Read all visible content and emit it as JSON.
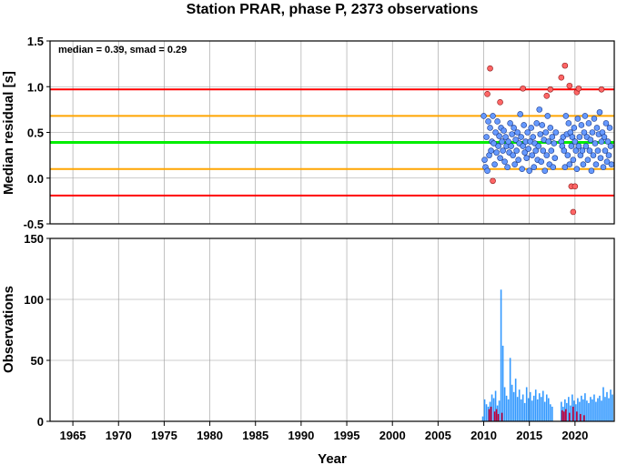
{
  "chart_data": [
    {
      "type": "scatter",
      "title": "Station PRAR, phase P, 2373 observations",
      "xlabel": "",
      "ylabel": "Median residual [s]",
      "annotation": "median = 0.39, smad = 0.29",
      "xlim": [
        1962.5,
        2024.3
      ],
      "ylim": [
        -0.5,
        1.5
      ],
      "yticks": [
        "1.5",
        "1.0",
        "0.5",
        "0.0",
        "-0.5"
      ],
      "grid": true,
      "reference_lines": [
        {
          "value": 0.97,
          "color": "#ff0000"
        },
        {
          "value": 0.68,
          "color": "#ffa500"
        },
        {
          "value": 0.39,
          "color": "#00ee00"
        },
        {
          "value": 0.1,
          "color": "#ffa500"
        },
        {
          "value": -0.19,
          "color": "#ff0000"
        }
      ],
      "point_colors": {
        "normal": "#6699ff",
        "outlier": "#ff6666"
      },
      "normal_points": [
        [
          2010.0,
          0.68
        ],
        [
          2010.1,
          0.2
        ],
        [
          2010.2,
          0.12
        ],
        [
          2010.3,
          0.45
        ],
        [
          2010.4,
          0.08
        ],
        [
          2010.5,
          0.62
        ],
        [
          2010.6,
          0.25
        ],
        [
          2010.7,
          0.55
        ],
        [
          2010.8,
          0.3
        ],
        [
          2010.9,
          0.4
        ],
        [
          2011.0,
          0.68
        ],
        [
          2011.1,
          0.38
        ],
        [
          2011.2,
          0.15
        ],
        [
          2011.3,
          0.5
        ],
        [
          2011.4,
          0.28
        ],
        [
          2011.5,
          0.62
        ],
        [
          2011.6,
          0.35
        ],
        [
          2011.7,
          0.46
        ],
        [
          2011.8,
          0.22
        ],
        [
          2011.9,
          0.55
        ],
        [
          2012.0,
          0.4
        ],
        [
          2012.1,
          0.3
        ],
        [
          2012.2,
          0.52
        ],
        [
          2012.3,
          0.18
        ],
        [
          2012.4,
          0.45
        ],
        [
          2012.5,
          0.35
        ],
        [
          2012.6,
          0.12
        ],
        [
          2012.7,
          0.4
        ],
        [
          2012.8,
          0.28
        ],
        [
          2012.9,
          0.6
        ],
        [
          2013.0,
          0.35
        ],
        [
          2013.1,
          0.48
        ],
        [
          2013.2,
          0.25
        ],
        [
          2013.3,
          0.55
        ],
        [
          2013.4,
          0.15
        ],
        [
          2013.5,
          0.42
        ],
        [
          2013.6,
          0.3
        ],
        [
          2013.7,
          0.5
        ],
        [
          2013.8,
          0.2
        ],
        [
          2013.9,
          0.38
        ],
        [
          2014.0,
          0.7
        ],
        [
          2014.1,
          0.45
        ],
        [
          2014.2,
          0.1
        ],
        [
          2014.3,
          0.35
        ],
        [
          2014.4,
          0.58
        ],
        [
          2014.5,
          0.28
        ],
        [
          2014.6,
          0.4
        ],
        [
          2014.7,
          0.22
        ],
        [
          2014.8,
          0.5
        ],
        [
          2014.9,
          0.32
        ],
        [
          2015.0,
          0.08
        ],
        [
          2015.1,
          0.4
        ],
        [
          2015.2,
          0.55
        ],
        [
          2015.3,
          0.25
        ],
        [
          2015.4,
          0.45
        ],
        [
          2015.5,
          0.12
        ],
        [
          2015.6,
          0.38
        ],
        [
          2015.7,
          0.3
        ],
        [
          2015.8,
          0.6
        ],
        [
          2015.9,
          0.2
        ],
        [
          2016.0,
          0.35
        ],
        [
          2016.1,
          0.75
        ],
        [
          2016.2,
          0.48
        ],
        [
          2016.3,
          0.18
        ],
        [
          2016.4,
          0.58
        ],
        [
          2016.5,
          0.3
        ],
        [
          2016.6,
          0.42
        ],
        [
          2016.7,
          0.08
        ],
        [
          2016.8,
          0.5
        ],
        [
          2016.9,
          0.25
        ],
        [
          2017.0,
          0.68
        ],
        [
          2017.1,
          0.4
        ],
        [
          2017.2,
          0.15
        ],
        [
          2017.3,
          0.55
        ],
        [
          2017.4,
          0.3
        ],
        [
          2017.5,
          0.45
        ],
        [
          2017.6,
          0.12
        ],
        [
          2017.7,
          0.38
        ],
        [
          2017.8,
          0.22
        ],
        [
          2017.9,
          0.5
        ],
        [
          2018.5,
          0.4
        ],
        [
          2018.6,
          0.35
        ],
        [
          2018.7,
          0.45
        ],
        [
          2018.8,
          0.3
        ],
        [
          2018.9,
          0.12
        ],
        [
          2019.0,
          0.68
        ],
        [
          2019.1,
          0.48
        ],
        [
          2019.2,
          0.25
        ],
        [
          2019.3,
          0.6
        ],
        [
          2019.4,
          0.15
        ],
        [
          2019.5,
          0.5
        ],
        [
          2019.6,
          0.35
        ],
        [
          2019.7,
          0.45
        ],
        [
          2019.8,
          0.2
        ],
        [
          2019.9,
          0.55
        ],
        [
          2020.0,
          0.4
        ],
        [
          2020.1,
          0.3
        ],
        [
          2020.2,
          0.1
        ],
        [
          2020.3,
          0.65
        ],
        [
          2020.4,
          0.35
        ],
        [
          2020.5,
          0.45
        ],
        [
          2020.6,
          0.25
        ],
        [
          2020.7,
          0.58
        ],
        [
          2020.8,
          0.3
        ],
        [
          2020.9,
          0.15
        ],
        [
          2021.0,
          0.5
        ],
        [
          2021.1,
          0.68
        ],
        [
          2021.2,
          0.35
        ],
        [
          2021.3,
          0.45
        ],
        [
          2021.4,
          0.2
        ],
        [
          2021.5,
          0.6
        ],
        [
          2021.6,
          0.3
        ],
        [
          2021.7,
          0.42
        ],
        [
          2021.8,
          0.08
        ],
        [
          2021.9,
          0.5
        ],
        [
          2022.0,
          0.25
        ],
        [
          2022.1,
          0.65
        ],
        [
          2022.2,
          0.38
        ],
        [
          2022.3,
          0.15
        ],
        [
          2022.4,
          0.55
        ],
        [
          2022.5,
          0.3
        ],
        [
          2022.6,
          0.48
        ],
        [
          2022.7,
          0.72
        ],
        [
          2022.8,
          0.22
        ],
        [
          2022.9,
          0.4
        ],
        [
          2023.0,
          0.5
        ],
        [
          2023.1,
          0.12
        ],
        [
          2023.2,
          0.45
        ],
        [
          2023.3,
          0.3
        ],
        [
          2023.4,
          0.6
        ],
        [
          2023.5,
          0.18
        ],
        [
          2023.6,
          0.4
        ],
        [
          2023.7,
          0.25
        ],
        [
          2023.8,
          0.55
        ],
        [
          2023.9,
          0.35
        ],
        [
          2024.0,
          0.15
        ]
      ],
      "outlier_points": [
        [
          2010.4,
          0.92
        ],
        [
          2010.7,
          1.2
        ],
        [
          2011.0,
          -0.03
        ],
        [
          2011.8,
          0.83
        ],
        [
          2014.3,
          0.98
        ],
        [
          2016.9,
          0.9
        ],
        [
          2017.3,
          0.97
        ],
        [
          2018.5,
          1.1
        ],
        [
          2018.9,
          1.23
        ],
        [
          2019.4,
          1.01
        ],
        [
          2019.6,
          -0.09
        ],
        [
          2019.8,
          -0.37
        ],
        [
          2020.0,
          -0.09
        ],
        [
          2020.2,
          0.94
        ],
        [
          2020.4,
          0.98
        ],
        [
          2022.9,
          0.97
        ]
      ]
    },
    {
      "type": "bar",
      "xlabel": "Year",
      "ylabel": "Observations",
      "xlim": [
        1962.5,
        2024.3
      ],
      "ylim": [
        0,
        150
      ],
      "yticks": [
        "150",
        "100",
        "50",
        "0"
      ],
      "xticks": [
        "1965",
        "1970",
        "1975",
        "1980",
        "1985",
        "1990",
        "1995",
        "2000",
        "2005",
        "2010",
        "2015",
        "2020"
      ],
      "grid": true,
      "colors": {
        "main": "#3399ff",
        "secondary": "#cc0033"
      },
      "main_bars": [
        [
          2009.9,
          4
        ],
        [
          2010.1,
          18
        ],
        [
          2010.3,
          14
        ],
        [
          2010.5,
          12
        ],
        [
          2010.7,
          16
        ],
        [
          2010.9,
          22
        ],
        [
          2011.1,
          19
        ],
        [
          2011.3,
          25
        ],
        [
          2011.5,
          13
        ],
        [
          2011.7,
          17
        ],
        [
          2011.9,
          108
        ],
        [
          2012.1,
          62
        ],
        [
          2012.3,
          28
        ],
        [
          2012.5,
          21
        ],
        [
          2012.7,
          18
        ],
        [
          2012.9,
          52
        ],
        [
          2013.1,
          30
        ],
        [
          2013.3,
          24
        ],
        [
          2013.5,
          35
        ],
        [
          2013.7,
          20
        ],
        [
          2013.9,
          26
        ],
        [
          2014.1,
          18
        ],
        [
          2014.3,
          22
        ],
        [
          2014.5,
          15
        ],
        [
          2014.7,
          28
        ],
        [
          2014.9,
          19
        ],
        [
          2015.1,
          24
        ],
        [
          2015.3,
          17
        ],
        [
          2015.5,
          21
        ],
        [
          2015.7,
          26
        ],
        [
          2015.9,
          18
        ],
        [
          2016.1,
          23
        ],
        [
          2016.3,
          20
        ],
        [
          2016.5,
          25
        ],
        [
          2016.7,
          16
        ],
        [
          2016.9,
          22
        ],
        [
          2017.1,
          19
        ],
        [
          2017.3,
          14
        ],
        [
          2017.5,
          12
        ],
        [
          2018.5,
          16
        ],
        [
          2018.7,
          12
        ],
        [
          2018.9,
          18
        ],
        [
          2019.1,
          15
        ],
        [
          2019.3,
          20
        ],
        [
          2019.5,
          13
        ],
        [
          2019.7,
          22
        ],
        [
          2019.9,
          17
        ],
        [
          2020.1,
          14
        ],
        [
          2020.3,
          19
        ],
        [
          2020.5,
          16
        ],
        [
          2020.7,
          21
        ],
        [
          2020.9,
          18
        ],
        [
          2021.1,
          23
        ],
        [
          2021.3,
          17
        ],
        [
          2021.5,
          15
        ],
        [
          2021.7,
          20
        ],
        [
          2021.9,
          18
        ],
        [
          2022.1,
          22
        ],
        [
          2022.3,
          16
        ],
        [
          2022.5,
          19
        ],
        [
          2022.7,
          21
        ],
        [
          2022.9,
          17
        ],
        [
          2023.1,
          28
        ],
        [
          2023.3,
          20
        ],
        [
          2023.5,
          24
        ],
        [
          2023.7,
          19
        ],
        [
          2023.9,
          26
        ],
        [
          2024.1,
          22
        ]
      ],
      "secondary_bars": [
        [
          2010.6,
          10
        ],
        [
          2010.8,
          12
        ],
        [
          2011.2,
          8
        ],
        [
          2011.4,
          10
        ],
        [
          2011.6,
          6
        ],
        [
          2012.0,
          7
        ],
        [
          2018.6,
          9
        ],
        [
          2018.8,
          8
        ],
        [
          2019.0,
          10
        ],
        [
          2019.4,
          7
        ],
        [
          2019.8,
          12
        ],
        [
          2020.2,
          8
        ],
        [
          2020.6,
          6
        ],
        [
          2021.0,
          5
        ]
      ]
    }
  ]
}
